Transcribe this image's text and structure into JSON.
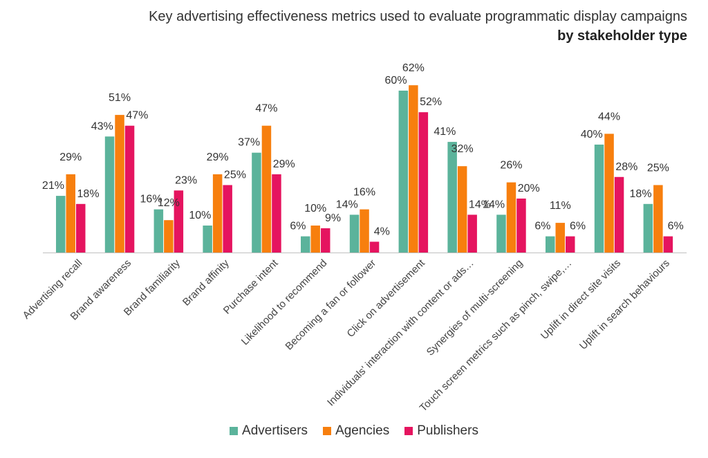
{
  "title": "Key advertising effectiveness metrics used to evaluate programmatic display campaigns",
  "subtitle": "by stakeholder type",
  "chart_data": {
    "type": "bar",
    "title": "Key advertising effectiveness metrics used to evaluate programmatic display campaigns",
    "subtitle": "by stakeholder type",
    "xlabel": "",
    "ylabel": "",
    "ylim": [
      0,
      70
    ],
    "grid": false,
    "legend": "bottom",
    "value_suffix": "%",
    "categories": [
      "Advertising recall",
      "Brand awareness",
      "Brand familiarity",
      "Brand affinity",
      "Purchase intent",
      "Likelihood to recommend",
      "Becoming a fan or follower",
      "Click on advertisement",
      "Individuals' interaction with content or ads…",
      "Synergies of multi-screening",
      "Touch screen metrics such as pinch, swipe,…",
      "Uplift in direct site visits",
      "Uplift in search behaviours"
    ],
    "series": [
      {
        "name": "Advertisers",
        "color": "#5bb39b",
        "values": [
          21,
          43,
          16,
          10,
          37,
          6,
          14,
          60,
          41,
          14,
          6,
          40,
          18
        ]
      },
      {
        "name": "Agencies",
        "color": "#f77f0e",
        "values": [
          29,
          51,
          12,
          29,
          47,
          10,
          16,
          62,
          32,
          26,
          11,
          44,
          25
        ]
      },
      {
        "name": "Publishers",
        "color": "#e5145f",
        "values": [
          18,
          47,
          23,
          25,
          29,
          9,
          4,
          52,
          14,
          20,
          6,
          28,
          6
        ]
      }
    ]
  }
}
